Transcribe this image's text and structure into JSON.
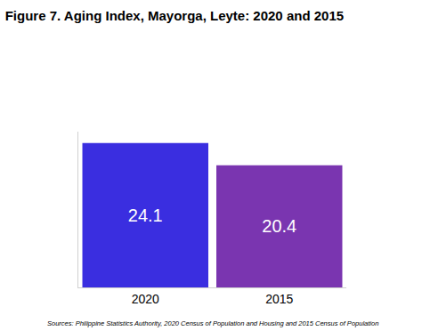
{
  "chart_data": {
    "type": "bar",
    "title": "Figure 7. Aging Index, Mayorga, Leyte: 2020 and 2015",
    "categories": [
      "2020",
      "2015"
    ],
    "values": [
      24.1,
      20.4
    ],
    "colors": [
      "#3a2ee0",
      "#7a35b0"
    ],
    "ylim": [
      0,
      26
    ],
    "yticks": [],
    "tick_labels": "x",
    "grid": false,
    "data_labels": true,
    "annotations": [
      "Sources: Philippine Statistics Authority, 2020 Census of Population and Housing and 2015 Census of Population"
    ]
  }
}
